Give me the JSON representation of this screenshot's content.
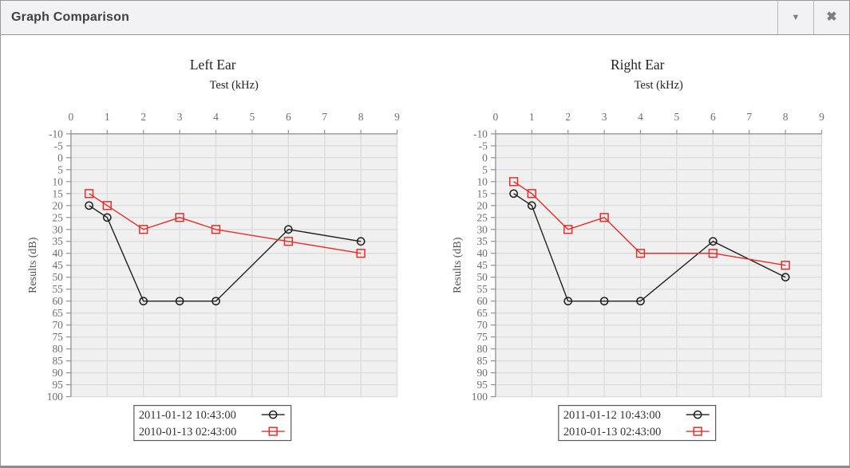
{
  "window": {
    "title": "Graph Comparison",
    "buttons": [
      {
        "id": "collapse",
        "icon": "caret-down-icon",
        "glyph": "▼"
      },
      {
        "id": "close",
        "icon": "close-icon",
        "glyph": "✖"
      }
    ]
  },
  "colors": {
    "series_black": "#1f1f1f",
    "series_red": "#e62e2a",
    "plot_background": "#f0f0f1",
    "gridline": "#dcdcde",
    "axis": "#8f9092",
    "tick_label": "#6f6f6f",
    "title_text": "#222222",
    "legend_border": "#57585a"
  },
  "chart_data": [
    {
      "type": "line",
      "title": "Left Ear",
      "xlabel": "Test (kHz)",
      "ylabel": "Results (dB)",
      "xlim": [
        0,
        9
      ],
      "ylim": [
        -10,
        100
      ],
      "y_inverted": true,
      "grid": true,
      "legend_position": "bottom",
      "x_ticks": [
        0,
        1,
        2,
        3,
        4,
        5,
        6,
        7,
        8,
        9
      ],
      "y_ticks": [
        -10,
        -5,
        0,
        5,
        10,
        15,
        20,
        25,
        30,
        35,
        40,
        45,
        50,
        55,
        60,
        65,
        70,
        75,
        80,
        85,
        90,
        95,
        100
      ],
      "x": [
        0.5,
        1,
        2,
        3,
        4,
        6,
        8
      ],
      "series": [
        {
          "name": "2011-01-12 10:43:00",
          "marker": "circle",
          "color": "#1f1f1f",
          "values": [
            20,
            25,
            60,
            60,
            60,
            30,
            35
          ]
        },
        {
          "name": "2010-01-13 02:43:00",
          "marker": "square",
          "color": "#e62e2a",
          "values": [
            15,
            20,
            30,
            25,
            30,
            35,
            40
          ]
        }
      ]
    },
    {
      "type": "line",
      "title": "Right Ear",
      "xlabel": "Test (kHz)",
      "ylabel": "Results (dB)",
      "xlim": [
        0,
        9
      ],
      "ylim": [
        -10,
        100
      ],
      "y_inverted": true,
      "grid": true,
      "legend_position": "bottom",
      "x_ticks": [
        0,
        1,
        2,
        3,
        4,
        5,
        6,
        7,
        8,
        9
      ],
      "y_ticks": [
        -10,
        -5,
        0,
        5,
        10,
        15,
        20,
        25,
        30,
        35,
        40,
        45,
        50,
        55,
        60,
        65,
        70,
        75,
        80,
        85,
        90,
        95,
        100
      ],
      "x": [
        0.5,
        1,
        2,
        3,
        4,
        6,
        8
      ],
      "series": [
        {
          "name": "2011-01-12 10:43:00",
          "marker": "circle",
          "color": "#1f1f1f",
          "values": [
            15,
            20,
            60,
            60,
            60,
            35,
            50
          ]
        },
        {
          "name": "2010-01-13 02:43:00",
          "marker": "square",
          "color": "#e62e2a",
          "values": [
            10,
            15,
            30,
            25,
            40,
            40,
            45
          ]
        }
      ]
    }
  ]
}
